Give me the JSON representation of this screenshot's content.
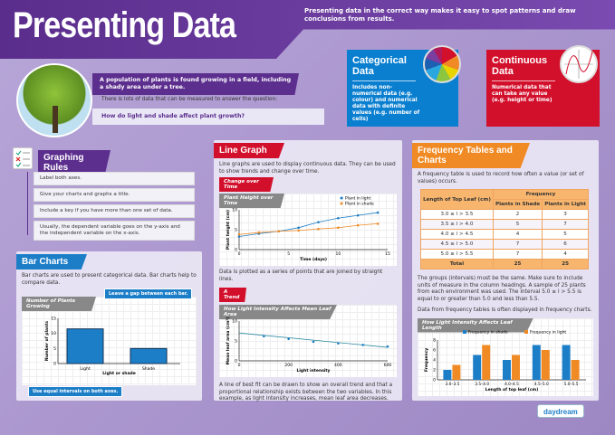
{
  "header": {
    "title": "Presenting Data",
    "intro": "Presenting data in the correct way makes it easy to spot patterns and draw conclusions from results."
  },
  "categorical": {
    "title": "Categorical Data",
    "text": "Includes non-numerical data (e.g. colour) and numerical data with definite values (e.g. number of cells)",
    "color": "#0a7fd0"
  },
  "continuous": {
    "title": "Continuous Data",
    "text": "Numerical data that can take any value (e.g. height or time)",
    "color": "#d2102c"
  },
  "scenario": {
    "line1": "A population of plants is found growing in a field, including a shady area under a tree.",
    "line2": "There is lots of data that can be measured to answer the question:",
    "question": "How do light and shade affect plant growth?"
  },
  "rules": {
    "title": "Graphing Rules",
    "items": [
      "Label both axes.",
      "Give your charts and graphs a title.",
      "Include a key if you have more than one set of data.",
      "Usually, the dependent variable goes on the y-axis and the independent variable on the x-axis."
    ]
  },
  "bar_section": {
    "title": "Bar Charts",
    "text": "Bar charts are used to present categorical data. Bar charts help to compare data.",
    "chart_title": "Number of Plants Growing",
    "callout_gap": "Leave a gap between each bar.",
    "callout_intervals": "Use equal intervals on both axes."
  },
  "line_section": {
    "title": "Line Graph",
    "text": "Line graphs are used to display continuous data. They can be used to show trends and change over time.",
    "subtitle": "Change over Time",
    "chart_title": "Plant Height over Time",
    "after": "Data is plotted as a series of points that are joined by straight lines.",
    "trend_subtitle": "A Trend",
    "trend_chart_title": "How Light Intensity Affects Mean Leaf Area",
    "trend_text": "A line of best fit can be drawn to show an overall trend and that a proportional relationship exists between the two variables. In this example, as light intensity increases, mean leaf area decreases."
  },
  "freq_section": {
    "title": "Frequency Tables and Charts",
    "text": "A frequency table is used to record how often a value (or set of values) occurs.",
    "table": {
      "col1": "Length of Top Leaf (cm)",
      "group": "Frequency",
      "col2": "Plants in Shade",
      "col3": "Plants in Light",
      "rows": [
        [
          "3.0 ≥ l > 3.5",
          "2",
          "3"
        ],
        [
          "3.5 ≥ l > 4.0",
          "5",
          "7"
        ],
        [
          "4.0 ≥ l > 4.5",
          "4",
          "5"
        ],
        [
          "4.5 ≥ l > 5.0",
          "7",
          "6"
        ],
        [
          "5.0 ≥ l > 5.5",
          "7",
          "4"
        ]
      ],
      "total": [
        "Total",
        "25",
        "25"
      ]
    },
    "text2": "The groups (intervals) must be the same. Make sure to include units of measure in the column headings. A sample of 25 plants from each environment was used. The interval 5.0 ≥ l > 5.5 is equal to or greater than 5.0 and less than 5.5.",
    "text3": "Data from frequency tables is often displayed in frequency charts.",
    "chart_title": "How Light Intensity Affects Leaf Length"
  },
  "logo": "daydream",
  "chart_data": [
    {
      "type": "bar",
      "title": "Number of Plants Growing",
      "categories": [
        "Light",
        "Shade"
      ],
      "values": [
        11.5,
        5
      ],
      "xlabel": "Light or shade",
      "ylabel": "Number of plants",
      "ylim": [
        0,
        15
      ],
      "yticks": [
        "0",
        "5",
        "10",
        "15"
      ],
      "color": "#1d7ec8"
    },
    {
      "type": "line",
      "title": "Plant Height over Time",
      "xlabel": "Time (days)",
      "ylabel": "Plant height (cm)",
      "xlim": [
        0,
        15
      ],
      "ylim": [
        0,
        10
      ],
      "xticks": [
        "0",
        "5",
        "10",
        "15"
      ],
      "yticks": [
        "0",
        "5",
        "10"
      ],
      "legend": "top-right",
      "x": [
        0,
        2,
        4,
        6,
        8,
        10,
        12,
        14
      ],
      "series": [
        {
          "name": "Plant in light",
          "color": "#1d7ec8",
          "values": [
            3.3,
            4,
            4.6,
            5.5,
            6.9,
            7.9,
            8.6,
            9.3
          ]
        },
        {
          "name": "Plant in shade",
          "color": "#f08a24",
          "values": [
            3.8,
            4.3,
            4.6,
            4.8,
            5.2,
            5.5,
            6.1,
            6.5
          ]
        }
      ]
    },
    {
      "type": "scatter",
      "title": "How Light Intensity Affects Mean Leaf Area",
      "xlabel": "Light intensity",
      "ylabel": "Mean leaf area (cm²)",
      "xlim": [
        0,
        600
      ],
      "ylim": [
        0,
        10
      ],
      "xticks": [
        "0",
        "200",
        "400",
        "600"
      ],
      "yticks": [
        "0",
        "5",
        "10"
      ],
      "x": [
        100,
        200,
        300,
        400,
        500,
        600
      ],
      "values": [
        6.2,
        5.5,
        4.8,
        4.4,
        4.0,
        3.6
      ],
      "best_fit": [
        [
          0,
          7
        ],
        [
          600,
          3.4
        ]
      ],
      "color": "#1d7ec8"
    },
    {
      "type": "bar",
      "title": "How Light Intensity Affects Leaf Length",
      "xlabel": "Length of top leaf (cm)",
      "ylabel": "Frequency",
      "ylim": [
        0,
        8
      ],
      "yticks": [
        "0",
        "2",
        "4",
        "6",
        "8"
      ],
      "legend": "top",
      "categories": [
        "3.0–3.5",
        "3.5–4.0",
        "4.0–4.5",
        "4.5–5.0",
        "5.0–5.5"
      ],
      "series": [
        {
          "name": "Frequency in shade",
          "color": "#1d7ec8",
          "values": [
            2,
            5,
            4,
            7,
            7
          ]
        },
        {
          "name": "Frequency in light",
          "color": "#f08a24",
          "values": [
            3,
            7,
            5,
            6,
            4
          ]
        }
      ]
    }
  ]
}
